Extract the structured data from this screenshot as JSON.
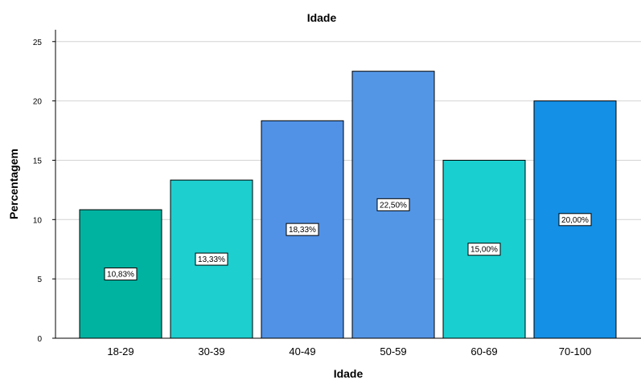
{
  "chart_data": {
    "type": "bar",
    "title": "Idade",
    "xlabel": "Idade",
    "ylabel": "Percentagem",
    "categories": [
      "18-29",
      "30-39",
      "40-49",
      "50-59",
      "60-69",
      "70-100"
    ],
    "values": [
      10.83,
      13.33,
      18.33,
      22.5,
      15.0,
      20.0
    ],
    "data_labels": [
      "10,83%",
      "13,33%",
      "18,33%",
      "22,50%",
      "15,00%",
      "20,00%"
    ],
    "colors": [
      "#00b3a1",
      "#1dcfcf",
      "#5192e6",
      "#5496e6",
      "#1acfcf",
      "#1490e6"
    ],
    "ylim": [
      0,
      26
    ],
    "yticks": [
      0,
      5,
      10,
      15,
      20,
      25
    ],
    "ytick_labels": [
      "0",
      "5",
      "10",
      "15",
      "20",
      "25"
    ],
    "grid": true,
    "legend": "none"
  }
}
